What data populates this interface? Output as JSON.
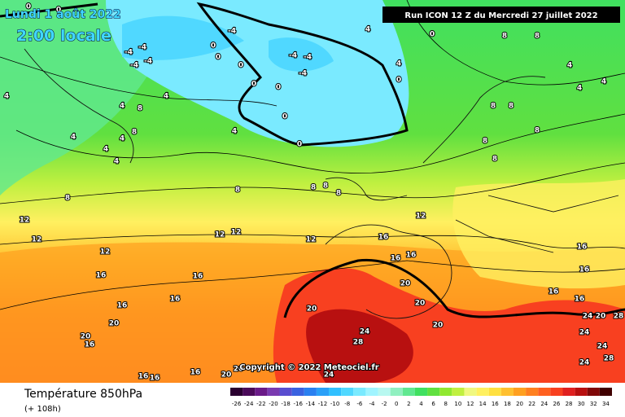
{
  "date": "Lundi 1 août 2022",
  "local_time": "2:00 locale",
  "run": "Run ICON 12 Z du Mercredi 27 juillet 2022",
  "copyright": "Copyright © 2022 Meteociel.fr",
  "legend_title": "Température 850hPa",
  "lead_time": "(+ 108h)",
  "colorbar": {
    "ticks": [
      -26,
      -24,
      -22,
      -20,
      -18,
      -16,
      -14,
      -12,
      -10,
      -8,
      -6,
      -4,
      -2,
      0,
      2,
      4,
      6,
      8,
      10,
      12,
      14,
      16,
      18,
      20,
      22,
      24,
      26,
      28,
      30,
      32,
      34
    ],
    "colors": [
      "#2a0030",
      "#4b0a5a",
      "#6a1a88",
      "#7a3ab0",
      "#5a4ed0",
      "#3a62e0",
      "#2a80f0",
      "#2aa0f8",
      "#30c0ff",
      "#50d8ff",
      "#7aeaff",
      "#a0f4ff",
      "#b8f8f0",
      "#90f0c0",
      "#60e890",
      "#40e060",
      "#60e040",
      "#90e830",
      "#c0f040",
      "#f0f880",
      "#fff060",
      "#ffe040",
      "#ffc030",
      "#ffa020",
      "#ff8020",
      "#ff6020",
      "#f84020",
      "#e02020",
      "#b81010",
      "#800808",
      "#400000"
    ]
  },
  "isotherm_labels": [
    0,
    0,
    -4,
    0,
    -4,
    -4,
    -4,
    -4,
    0,
    -4,
    -4,
    -4,
    0,
    0,
    0,
    0,
    0,
    4,
    4,
    0,
    0,
    8,
    8,
    4,
    4,
    4,
    4,
    4,
    8,
    4,
    8,
    4,
    4,
    4,
    4,
    4,
    8,
    8,
    8,
    8,
    8,
    8,
    8,
    8,
    8,
    8,
    12,
    12,
    12,
    12,
    12,
    12,
    12,
    16,
    16,
    16,
    16,
    16,
    16,
    16,
    16,
    16,
    16,
    16,
    20,
    20,
    20,
    20,
    20,
    16,
    20,
    24,
    28,
    24,
    20,
    28,
    24,
    24,
    28,
    24,
    16,
    16,
    16,
    20,
    20,
    24
  ]
}
